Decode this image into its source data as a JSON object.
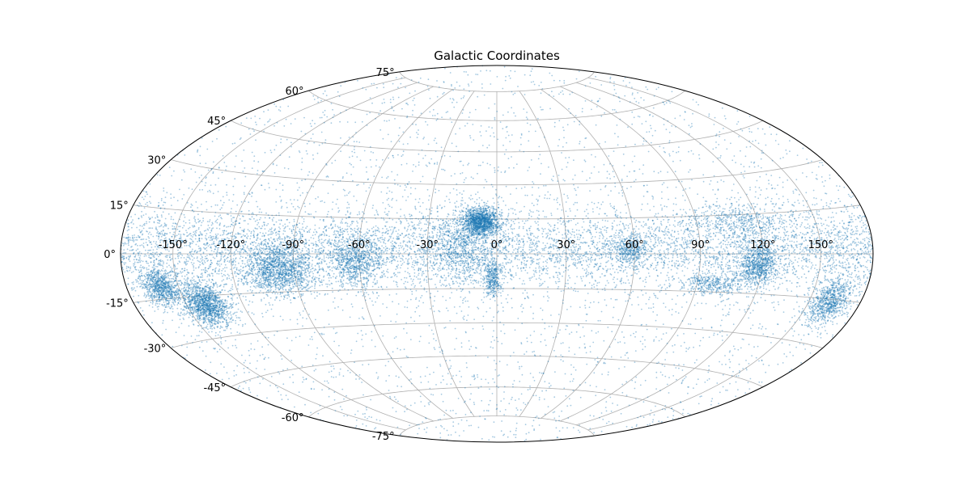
{
  "chart_data": {
    "type": "scatter",
    "projection": "aitoff",
    "title": "Galactic Coordinates",
    "xlabel": "",
    "ylabel": "",
    "grid": true,
    "xlim": [
      -180,
      180
    ],
    "ylim": [
      -90,
      90
    ],
    "lon_ticks": [
      "-150°",
      "-120°",
      "-90°",
      "-60°",
      "-30°",
      "0°",
      "30°",
      "60°",
      "90°",
      "120°",
      "150°"
    ],
    "lat_ticks": [
      "75°",
      "60°",
      "45°",
      "30°",
      "15°",
      "0°",
      "-15°",
      "-30°",
      "-45°",
      "-60°",
      "-75°"
    ],
    "series": [
      {
        "color": "#1f77b4",
        "marker_alpha": 0.4,
        "clusters": [
          {
            "lon": -140,
            "lat": -18,
            "spread_lon": 6,
            "spread_lat": 4,
            "density": "very high"
          },
          {
            "lon": -160,
            "lat": -11,
            "spread_lon": 5,
            "spread_lat": 3,
            "density": "high"
          },
          {
            "lon": -98,
            "lat": -6,
            "spread_lon": 8,
            "spread_lat": 5,
            "density": "very high"
          },
          {
            "lon": -62,
            "lat": -2,
            "spread_lon": 6,
            "spread_lat": 6,
            "density": "high"
          },
          {
            "lon": -15,
            "lat": 3,
            "spread_lon": 8,
            "spread_lat": 8,
            "density": "high"
          },
          {
            "lon": -7,
            "lat": 14,
            "spread_lon": 4,
            "spread_lat": 3,
            "density": "very high"
          },
          {
            "lon": -2,
            "lat": -11,
            "spread_lon": 2,
            "spread_lat": 4,
            "density": "medium"
          },
          {
            "lon": 58,
            "lat": 2,
            "spread_lon": 4,
            "spread_lat": 3,
            "density": "medium"
          },
          {
            "lon": 118,
            "lat": -4,
            "spread_lon": 5,
            "spread_lat": 4,
            "density": "high"
          },
          {
            "lon": 98,
            "lat": -12,
            "spread_lon": 7,
            "spread_lat": 2,
            "density": "medium"
          },
          {
            "lon": 110,
            "lat": 13,
            "spread_lon": 12,
            "spread_lat": 3,
            "density": "medium"
          },
          {
            "lon": 162,
            "lat": -16,
            "spread_lon": 6,
            "spread_lat": 4,
            "density": "high"
          }
        ],
        "band": {
          "lat_center": 2,
          "lat_spread": 8,
          "density": "high"
        },
        "background": {
          "density": "low",
          "distribution": "uniform over sphere"
        }
      }
    ]
  }
}
